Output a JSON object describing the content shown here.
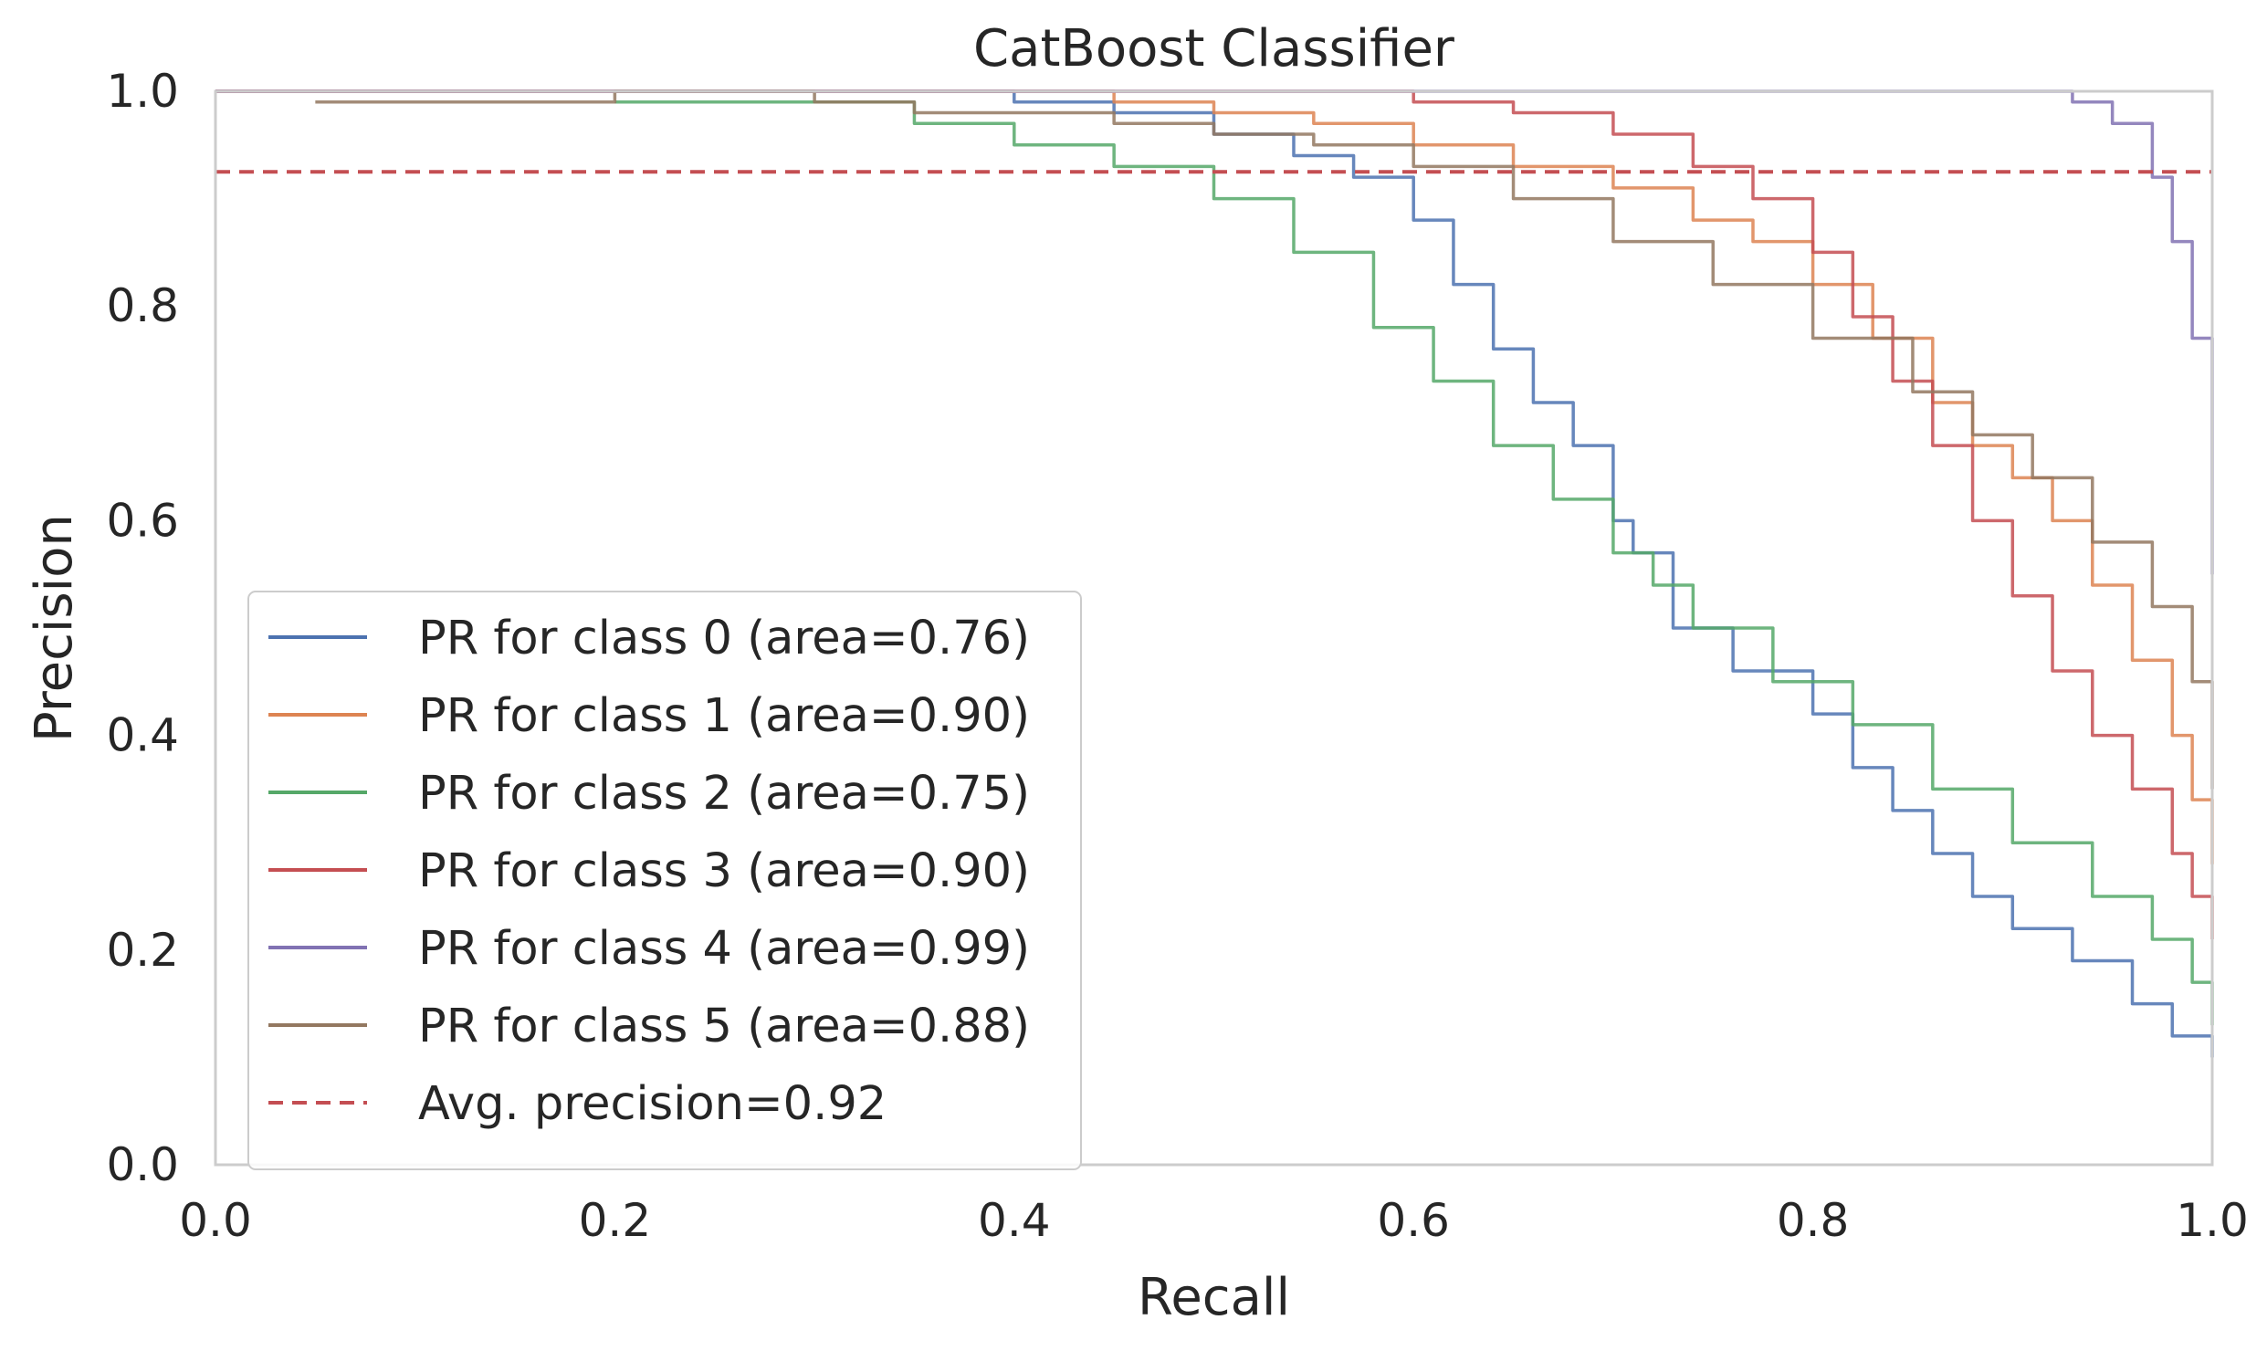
{
  "chart_data": {
    "type": "line",
    "title": "CatBoost Classifier",
    "xlabel": "Recall",
    "ylabel": "Precision",
    "xlim": [
      0.0,
      1.0
    ],
    "ylim": [
      0.0,
      1.0
    ],
    "xticks": [
      "0.0",
      "0.2",
      "0.4",
      "0.6",
      "0.8",
      "1.0"
    ],
    "yticks": [
      "0.0",
      "0.2",
      "0.4",
      "0.6",
      "0.8",
      "1.0"
    ],
    "grid": false,
    "legend_position": "lower-left",
    "series": [
      {
        "name": "PR for class 0 (area=0.76)",
        "color": "#4c72b0",
        "points": [
          [
            0.0,
            1.0
          ],
          [
            0.3,
            1.0
          ],
          [
            0.4,
            0.99
          ],
          [
            0.45,
            0.98
          ],
          [
            0.5,
            0.96
          ],
          [
            0.54,
            0.94
          ],
          [
            0.57,
            0.92
          ],
          [
            0.6,
            0.88
          ],
          [
            0.62,
            0.82
          ],
          [
            0.64,
            0.76
          ],
          [
            0.66,
            0.71
          ],
          [
            0.68,
            0.67
          ],
          [
            0.7,
            0.6
          ],
          [
            0.71,
            0.57
          ],
          [
            0.73,
            0.5
          ],
          [
            0.76,
            0.46
          ],
          [
            0.8,
            0.42
          ],
          [
            0.82,
            0.37
          ],
          [
            0.84,
            0.33
          ],
          [
            0.86,
            0.29
          ],
          [
            0.88,
            0.25
          ],
          [
            0.9,
            0.22
          ],
          [
            0.93,
            0.19
          ],
          [
            0.96,
            0.15
          ],
          [
            0.98,
            0.12
          ],
          [
            1.0,
            0.1
          ]
        ]
      },
      {
        "name": "PR for class 1 (area=0.90)",
        "color": "#dd8452",
        "points": [
          [
            0.0,
            1.0
          ],
          [
            0.35,
            1.0
          ],
          [
            0.45,
            0.99
          ],
          [
            0.5,
            0.98
          ],
          [
            0.55,
            0.97
          ],
          [
            0.6,
            0.95
          ],
          [
            0.65,
            0.93
          ],
          [
            0.7,
            0.91
          ],
          [
            0.74,
            0.88
          ],
          [
            0.77,
            0.86
          ],
          [
            0.8,
            0.82
          ],
          [
            0.83,
            0.77
          ],
          [
            0.86,
            0.71
          ],
          [
            0.88,
            0.67
          ],
          [
            0.9,
            0.64
          ],
          [
            0.92,
            0.6
          ],
          [
            0.94,
            0.54
          ],
          [
            0.96,
            0.47
          ],
          [
            0.98,
            0.4
          ],
          [
            0.99,
            0.34
          ],
          [
            1.0,
            0.28
          ]
        ]
      },
      {
        "name": "PR for class 2 (area=0.75)",
        "color": "#55a868",
        "points": [
          [
            0.2,
            0.99
          ],
          [
            0.3,
            0.99
          ],
          [
            0.35,
            0.97
          ],
          [
            0.4,
            0.95
          ],
          [
            0.45,
            0.93
          ],
          [
            0.5,
            0.9
          ],
          [
            0.54,
            0.85
          ],
          [
            0.58,
            0.78
          ],
          [
            0.61,
            0.73
          ],
          [
            0.64,
            0.67
          ],
          [
            0.67,
            0.62
          ],
          [
            0.7,
            0.57
          ],
          [
            0.72,
            0.54
          ],
          [
            0.74,
            0.5
          ],
          [
            0.78,
            0.45
          ],
          [
            0.82,
            0.41
          ],
          [
            0.86,
            0.35
          ],
          [
            0.9,
            0.3
          ],
          [
            0.94,
            0.25
          ],
          [
            0.97,
            0.21
          ],
          [
            0.99,
            0.17
          ],
          [
            1.0,
            0.13
          ]
        ]
      },
      {
        "name": "PR for class 3 (area=0.90)",
        "color": "#c44e52",
        "points": [
          [
            0.0,
            1.0
          ],
          [
            0.5,
            1.0
          ],
          [
            0.6,
            0.99
          ],
          [
            0.65,
            0.98
          ],
          [
            0.7,
            0.96
          ],
          [
            0.74,
            0.93
          ],
          [
            0.77,
            0.9
          ],
          [
            0.8,
            0.85
          ],
          [
            0.82,
            0.79
          ],
          [
            0.84,
            0.73
          ],
          [
            0.86,
            0.67
          ],
          [
            0.88,
            0.6
          ],
          [
            0.9,
            0.53
          ],
          [
            0.92,
            0.46
          ],
          [
            0.94,
            0.4
          ],
          [
            0.96,
            0.35
          ],
          [
            0.98,
            0.29
          ],
          [
            0.99,
            0.25
          ],
          [
            1.0,
            0.21
          ]
        ]
      },
      {
        "name": "PR for class 4 (area=0.99)",
        "color": "#8172b3",
        "points": [
          [
            0.0,
            1.0
          ],
          [
            0.9,
            1.0
          ],
          [
            0.93,
            0.99
          ],
          [
            0.95,
            0.97
          ],
          [
            0.97,
            0.92
          ],
          [
            0.98,
            0.86
          ],
          [
            0.99,
            0.77
          ],
          [
            1.0,
            0.65
          ],
          [
            1.0,
            0.55
          ]
        ]
      },
      {
        "name": "PR for class 5 (area=0.88)",
        "color": "#937860",
        "points": [
          [
            0.05,
            0.99
          ],
          [
            0.1,
            0.99
          ],
          [
            0.2,
            1.0
          ],
          [
            0.3,
            0.99
          ],
          [
            0.35,
            0.98
          ],
          [
            0.4,
            0.98
          ],
          [
            0.45,
            0.97
          ],
          [
            0.5,
            0.96
          ],
          [
            0.55,
            0.95
          ],
          [
            0.6,
            0.93
          ],
          [
            0.65,
            0.9
          ],
          [
            0.7,
            0.86
          ],
          [
            0.75,
            0.82
          ],
          [
            0.8,
            0.77
          ],
          [
            0.85,
            0.72
          ],
          [
            0.88,
            0.68
          ],
          [
            0.91,
            0.64
          ],
          [
            0.94,
            0.58
          ],
          [
            0.97,
            0.52
          ],
          [
            0.99,
            0.45
          ],
          [
            1.0,
            0.35
          ]
        ]
      },
      {
        "name": "Avg. precision=0.92",
        "color": "#c44e52",
        "dashed": true,
        "points": [
          [
            0.0,
            0.925
          ],
          [
            1.0,
            0.925
          ]
        ]
      }
    ]
  }
}
